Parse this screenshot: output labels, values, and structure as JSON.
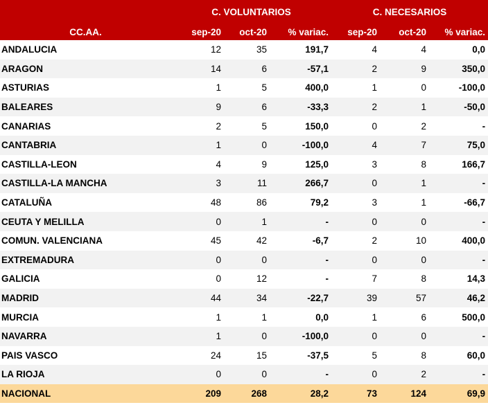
{
  "header": {
    "group_voluntarios": "C. VOLUNTARIOS",
    "group_necesarios": "C.  NECESARIOS",
    "region_col": "CC.AA.",
    "sep": "sep-20",
    "oct": "oct-20",
    "var": "% variac."
  },
  "colors": {
    "header_bg": "#c00000",
    "total_bg": "#fcd89a",
    "stripe": "#f2f2f2"
  },
  "rows": [
    {
      "region": "ANDALUCIA",
      "v_sep": "12",
      "v_oct": "35",
      "v_var": "191,7",
      "n_sep": "4",
      "n_oct": "4",
      "n_var": "0,0"
    },
    {
      "region": "ARAGON",
      "v_sep": "14",
      "v_oct": "6",
      "v_var": "-57,1",
      "n_sep": "2",
      "n_oct": "9",
      "n_var": "350,0"
    },
    {
      "region": "ASTURIAS",
      "v_sep": "1",
      "v_oct": "5",
      "v_var": "400,0",
      "n_sep": "1",
      "n_oct": "0",
      "n_var": "-100,0"
    },
    {
      "region": "BALEARES",
      "v_sep": "9",
      "v_oct": "6",
      "v_var": "-33,3",
      "n_sep": "2",
      "n_oct": "1",
      "n_var": "-50,0"
    },
    {
      "region": "CANARIAS",
      "v_sep": "2",
      "v_oct": "5",
      "v_var": "150,0",
      "n_sep": "0",
      "n_oct": "2",
      "n_var": "-"
    },
    {
      "region": "CANTABRIA",
      "v_sep": "1",
      "v_oct": "0",
      "v_var": "-100,0",
      "n_sep": "4",
      "n_oct": "7",
      "n_var": "75,0"
    },
    {
      "region": "CASTILLA-LEON",
      "v_sep": "4",
      "v_oct": "9",
      "v_var": "125,0",
      "n_sep": "3",
      "n_oct": "8",
      "n_var": "166,7"
    },
    {
      "region": "CASTILLA-LA MANCHA",
      "v_sep": "3",
      "v_oct": "11",
      "v_var": "266,7",
      "n_sep": "0",
      "n_oct": "1",
      "n_var": "-"
    },
    {
      "region": "CATALUÑA",
      "v_sep": "48",
      "v_oct": "86",
      "v_var": "79,2",
      "n_sep": "3",
      "n_oct": "1",
      "n_var": "-66,7"
    },
    {
      "region": "CEUTA Y MELILLA",
      "v_sep": "0",
      "v_oct": "1",
      "v_var": "-",
      "n_sep": "0",
      "n_oct": "0",
      "n_var": "-"
    },
    {
      "region": "COMUN. VALENCIANA",
      "v_sep": "45",
      "v_oct": "42",
      "v_var": "-6,7",
      "n_sep": "2",
      "n_oct": "10",
      "n_var": "400,0"
    },
    {
      "region": "EXTREMADURA",
      "v_sep": "0",
      "v_oct": "0",
      "v_var": "-",
      "n_sep": "0",
      "n_oct": "0",
      "n_var": "-"
    },
    {
      "region": "GALICIA",
      "v_sep": "0",
      "v_oct": "12",
      "v_var": "-",
      "n_sep": "7",
      "n_oct": "8",
      "n_var": "14,3"
    },
    {
      "region": "MADRID",
      "v_sep": "44",
      "v_oct": "34",
      "v_var": "-22,7",
      "n_sep": "39",
      "n_oct": "57",
      "n_var": "46,2"
    },
    {
      "region": "MURCIA",
      "v_sep": "1",
      "v_oct": "1",
      "v_var": "0,0",
      "n_sep": "1",
      "n_oct": "6",
      "n_var": "500,0"
    },
    {
      "region": "NAVARRA",
      "v_sep": "1",
      "v_oct": "0",
      "v_var": "-100,0",
      "n_sep": "0",
      "n_oct": "0",
      "n_var": "-"
    },
    {
      "region": "PAIS VASCO",
      "v_sep": "24",
      "v_oct": "15",
      "v_var": "-37,5",
      "n_sep": "5",
      "n_oct": "8",
      "n_var": "60,0"
    },
    {
      "region": "LA RIOJA",
      "v_sep": "0",
      "v_oct": "0",
      "v_var": "-",
      "n_sep": "0",
      "n_oct": "2",
      "n_var": "-"
    }
  ],
  "total": {
    "region": "NACIONAL",
    "v_sep": "209",
    "v_oct": "268",
    "v_var": "28,2",
    "n_sep": "73",
    "n_oct": "124",
    "n_var": "69,9"
  }
}
